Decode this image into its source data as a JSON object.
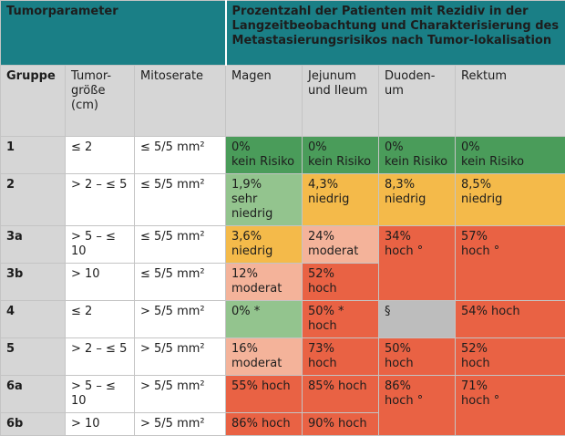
{
  "header": {
    "tumor_parameter": "Tumorparameter",
    "recurrence_title": "Prozentzahl der Patienten mit Rezidiv in der Langzeitbeobachtung und Charakterisierung des Metastasierungsrisikos nach Tumor-lokalisation"
  },
  "columns": {
    "gruppe": "Gruppe",
    "tumorgroesse": "Tumor-größe (cm)",
    "mitoserate": "Mitoserate",
    "magen": "Magen",
    "jejunum": "Jejunum und Ileum",
    "duodenum": "Duoden-um",
    "rektum": "Rektum"
  },
  "rows": [
    {
      "gruppe": "1",
      "size": "≤ 2",
      "mitose": "≤ 5/5 mm²",
      "magen": "0%\nkein Risiko",
      "jejunum": "0%\nkein Risiko",
      "duodenum": "0%\nkein Risiko",
      "rektum": "0%\nkein Risiko"
    },
    {
      "gruppe": "2",
      "size": "> 2 – ≤ 5",
      "mitose": "≤ 5/5 mm²",
      "magen": "1,9%\nsehr niedrig",
      "jejunum": "4,3%\nniedrig",
      "duodenum": "8,3%\nniedrig",
      "rektum": "8,5%\nniedrig"
    },
    {
      "gruppe": "3a",
      "size": "> 5 – ≤ 10",
      "mitose": "≤ 5/5 mm²",
      "magen": "3,6%\nniedrig",
      "jejunum": "24%\nmoderat",
      "duodenum": "34%\nhoch °",
      "rektum": "57%\nhoch °"
    },
    {
      "gruppe": "3b",
      "size": "> 10",
      "mitose": "≤ 5/5 mm²",
      "magen": "12%\nmoderat",
      "jejunum": "52%\nhoch"
    },
    {
      "gruppe": "4",
      "size": "≤ 2",
      "mitose": "> 5/5 mm²",
      "magen": "0% *",
      "jejunum": "50% * hoch",
      "duodenum": "§",
      "rektum": "54% hoch"
    },
    {
      "gruppe": "5",
      "size": "> 2 – ≤ 5",
      "mitose": "> 5/5 mm²",
      "magen": "16%\nmoderat",
      "jejunum": "73%\nhoch",
      "duodenum": "50%\nhoch",
      "rektum": "52%\nhoch"
    },
    {
      "gruppe": "6a",
      "size": "> 5 – ≤ 10",
      "mitose": "> 5/5 mm²",
      "magen": "55% hoch",
      "jejunum": "85% hoch",
      "duodenum": "86%\nhoch °",
      "rektum": "71%\nhoch °"
    },
    {
      "gruppe": "6b",
      "size": "> 10",
      "mitose": "> 5/5 mm²",
      "magen": "86% hoch",
      "jejunum": "90% hoch"
    }
  ],
  "colors": {
    "header": "#1a7f86",
    "kein_risiko": "#4a9c5a",
    "sehr_niedrig": "#93c48e",
    "niedrig": "#f4ba4a",
    "moderat": "#f4b39a",
    "hoch": "#e96244",
    "na": "#bdbdbd"
  }
}
